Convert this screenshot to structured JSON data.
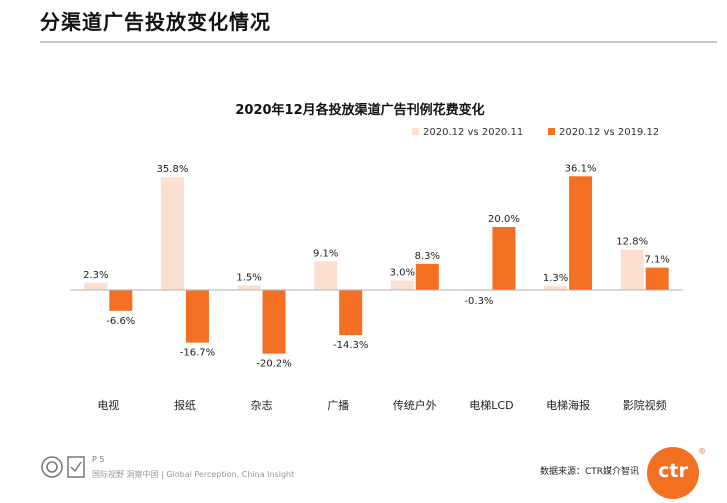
{
  "page": {
    "title": "分渠道广告投放变化情况",
    "page_number": "P 5",
    "slogan": "国际视野 洞察中国 | Global Perception, China Insight",
    "source": "数据来源：CTR媒介智讯",
    "logo_text": "ctr",
    "logo_mark": "®"
  },
  "colors": {
    "mom": "#fbe0d0",
    "yoy": "#f36f21"
  },
  "chart_data": {
    "type": "bar",
    "title": "2020年12月各投放渠道广告刊例花费变化",
    "categories": [
      "电视",
      "报纸",
      "杂志",
      "广播",
      "传统户外",
      "电梯LCD",
      "电梯海报",
      "影院视频"
    ],
    "series": [
      {
        "name": "2020.12 vs 2020.11",
        "values": [
          2.3,
          35.8,
          1.5,
          9.1,
          3.0,
          -0.3,
          1.3,
          12.8
        ],
        "labels": [
          "2.3%",
          "35.8%",
          "1.5%",
          "9.1%",
          "3.0%",
          "-0.3%",
          "1.3%",
          "12.8%"
        ]
      },
      {
        "name": "2020.12 vs 2019.12",
        "values": [
          -6.6,
          -16.7,
          -20.2,
          -14.3,
          8.3,
          20.0,
          36.1,
          7.1
        ],
        "labels": [
          "-6.6%",
          "-16.7%",
          "-20.2%",
          "-14.3%",
          "8.3%",
          "20.0%",
          "36.1%",
          "7.1%"
        ]
      }
    ],
    "xlabel": "",
    "ylabel": "",
    "ylim": [
      -22,
      37
    ],
    "legend": "top-right",
    "grid": false
  }
}
